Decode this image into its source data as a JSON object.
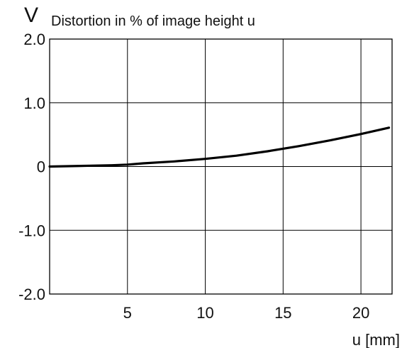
{
  "chart_data": {
    "type": "line",
    "y_symbol": "V",
    "title": "Distortion in % of image height u",
    "xlabel": "u [mm]",
    "xlim": [
      0,
      22
    ],
    "ylim": [
      -2.0,
      2.0
    ],
    "x_ticks": [
      5,
      10,
      15,
      20
    ],
    "x_tick_labels": [
      "5",
      "10",
      "15",
      "20"
    ],
    "y_ticks": [
      2.0,
      1.0,
      0,
      -1.0,
      -2.0
    ],
    "y_tick_labels": [
      "2.0",
      "1.0",
      "0",
      "-1.0",
      "-2.0"
    ],
    "grid": true,
    "series": [
      {
        "x": [
          0,
          2,
          4,
          5,
          6,
          8,
          10,
          12,
          14,
          16,
          18,
          20,
          21.8
        ],
        "y": [
          0.0,
          0.01,
          0.02,
          0.03,
          0.05,
          0.08,
          0.12,
          0.17,
          0.24,
          0.32,
          0.41,
          0.51,
          0.61
        ]
      }
    ],
    "line_color": "#000000",
    "grid_color": "#000000"
  }
}
